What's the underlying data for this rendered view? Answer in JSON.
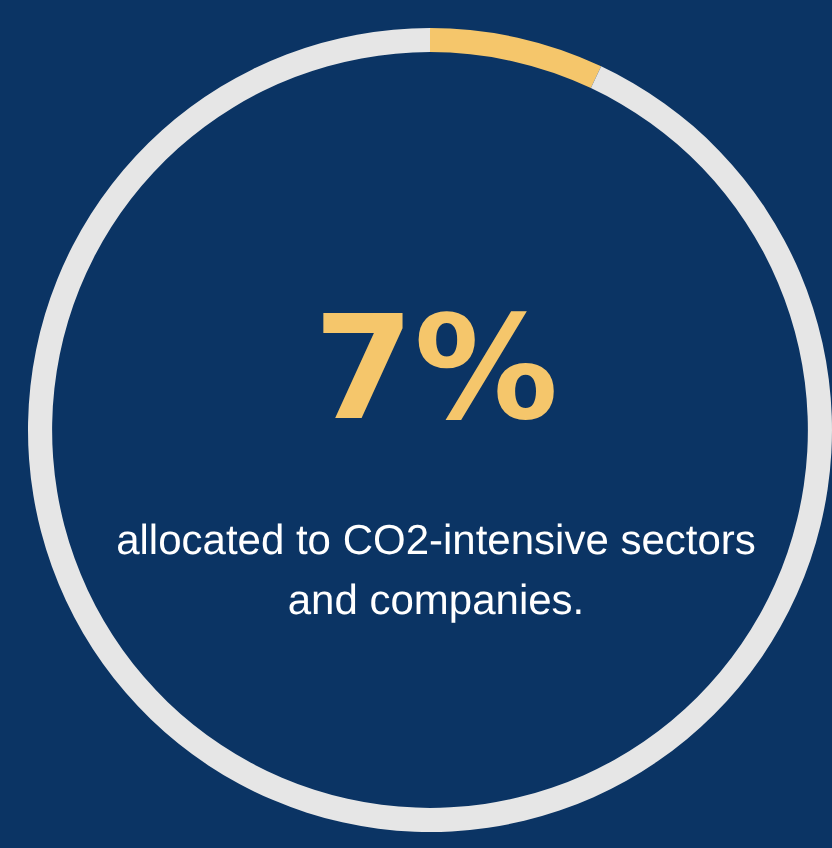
{
  "chart_data": {
    "type": "donut",
    "title": "7%",
    "subtitle": "allocated to CO2-intensive sectors and companies.",
    "categories": [
      null,
      null
    ],
    "values": [
      7,
      93
    ],
    "colors": [
      "#f5c66b",
      "#e6e6e6"
    ]
  }
}
